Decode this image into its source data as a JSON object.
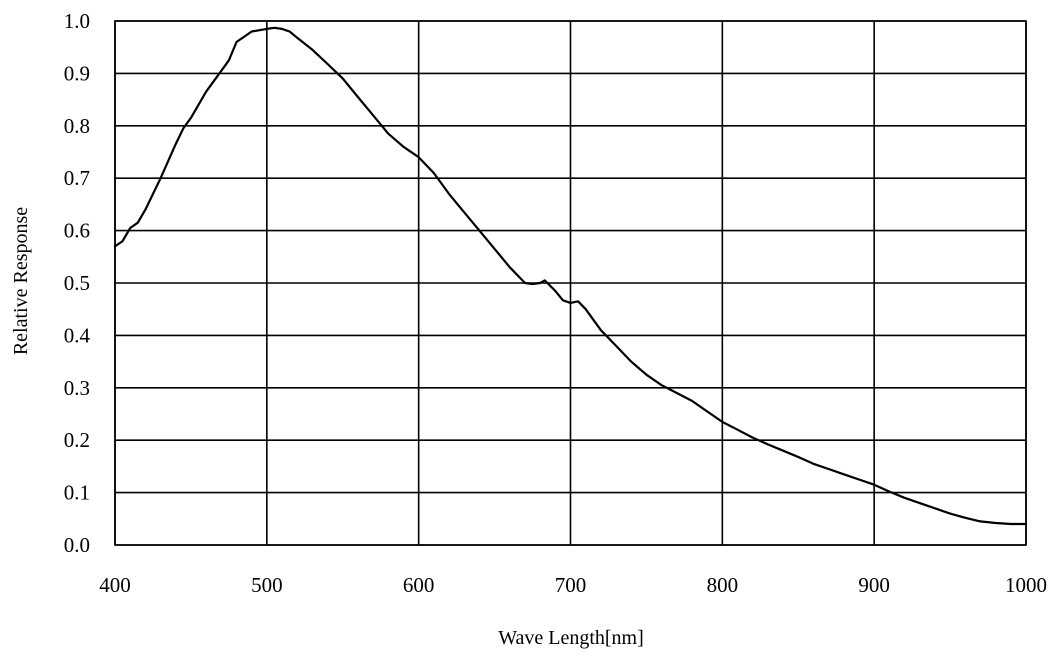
{
  "chart_data": {
    "type": "line",
    "title": "",
    "xlabel": "Wave Length[nm]",
    "ylabel": "Relative Response",
    "xlim": [
      400,
      1000
    ],
    "ylim": [
      0.0,
      1.0
    ],
    "grid": true,
    "legend": "none",
    "line_color": "#000000",
    "x_ticks": [
      "400",
      "500",
      "600",
      "700",
      "800",
      "900",
      "1000"
    ],
    "y_ticks": [
      "0.0",
      "0.1",
      "0.2",
      "0.3",
      "0.4",
      "0.5",
      "0.6",
      "0.7",
      "0.8",
      "0.9",
      "1.0"
    ],
    "series": [
      {
        "x": [
          400,
          405,
          410,
          415,
          420,
          430,
          440,
          445,
          450,
          460,
          470,
          475,
          480,
          490,
          500,
          505,
          510,
          515,
          520,
          530,
          540,
          550,
          560,
          570,
          580,
          590,
          600,
          610,
          620,
          630,
          640,
          650,
          660,
          670,
          675,
          680,
          683,
          690,
          695,
          700,
          705,
          710,
          720,
          730,
          740,
          750,
          760,
          770,
          780,
          790,
          800,
          810,
          820,
          830,
          840,
          850,
          860,
          870,
          880,
          890,
          900,
          910,
          920,
          930,
          940,
          950,
          960,
          970,
          980,
          990,
          1000
        ],
        "y": [
          0.57,
          0.58,
          0.605,
          0.615,
          0.64,
          0.7,
          0.765,
          0.795,
          0.815,
          0.865,
          0.905,
          0.925,
          0.96,
          0.98,
          0.985,
          0.987,
          0.985,
          0.98,
          0.968,
          0.945,
          0.918,
          0.89,
          0.855,
          0.82,
          0.785,
          0.76,
          0.74,
          0.71,
          0.67,
          0.635,
          0.6,
          0.565,
          0.53,
          0.5,
          0.498,
          0.5,
          0.505,
          0.485,
          0.467,
          0.462,
          0.465,
          0.45,
          0.41,
          0.38,
          0.35,
          0.325,
          0.305,
          0.29,
          0.275,
          0.255,
          0.235,
          0.22,
          0.205,
          0.192,
          0.18,
          0.168,
          0.155,
          0.145,
          0.135,
          0.125,
          0.115,
          0.102,
          0.09,
          0.08,
          0.07,
          0.06,
          0.052,
          0.045,
          0.042,
          0.04,
          0.04
        ]
      }
    ]
  }
}
